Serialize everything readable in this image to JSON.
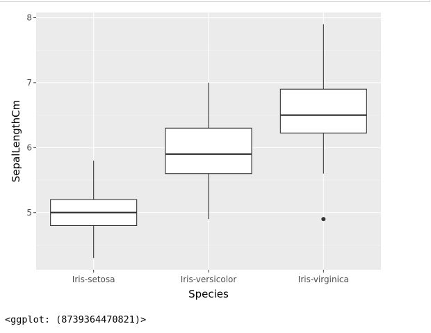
{
  "chart_data": {
    "type": "boxplot",
    "title": "",
    "xlabel": "Species",
    "ylabel": "SepalLengthCm",
    "categories": [
      "Iris-setosa",
      "Iris-versicolor",
      "Iris-virginica"
    ],
    "boxes": [
      {
        "category": "Iris-setosa",
        "whisker_low": 4.3,
        "q1": 4.8,
        "median": 5.0,
        "q3": 5.2,
        "whisker_high": 5.8,
        "outliers": []
      },
      {
        "category": "Iris-versicolor",
        "whisker_low": 4.9,
        "q1": 5.6,
        "median": 5.9,
        "q3": 6.3,
        "whisker_high": 7.0,
        "outliers": []
      },
      {
        "category": "Iris-virginica",
        "whisker_low": 5.6,
        "q1": 6.225,
        "median": 6.5,
        "q3": 6.9,
        "whisker_high": 7.9,
        "outliers": [
          4.9
        ]
      }
    ],
    "yticks": [
      5,
      6,
      7,
      8
    ],
    "ylim": [
      4.12,
      8.08
    ],
    "grid": true,
    "legend": "none",
    "colors": {
      "panel_background": "#ebebeb",
      "grid_major": "#ffffff",
      "grid_minor": "#f5f5f5",
      "box_fill": "#ffffff",
      "box_stroke": "#333333",
      "tick_text": "#4d4d4d"
    }
  },
  "console": {
    "repr": "<ggplot: (8739364470821)>"
  }
}
